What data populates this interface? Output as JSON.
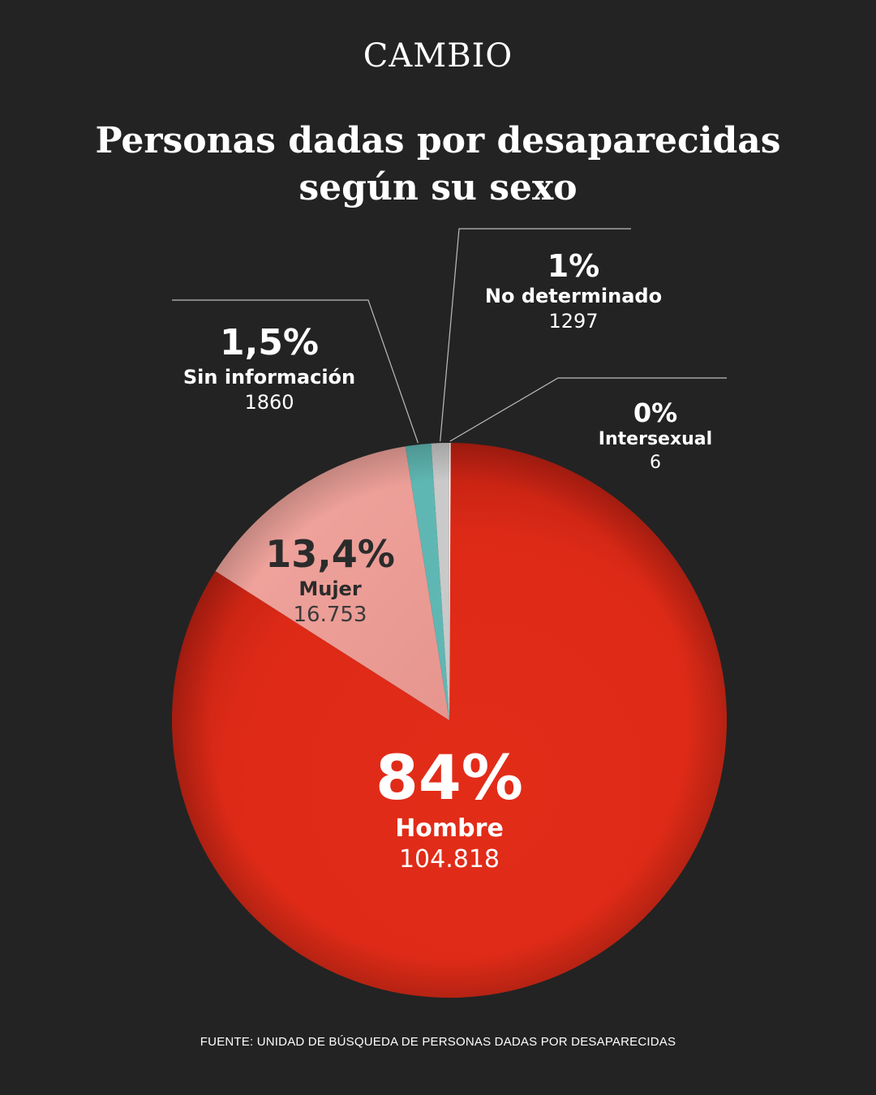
{
  "brand": "CAMBIO",
  "title_line1": "Personas dadas por desaparecidas",
  "title_line2": "según su sexo",
  "source": "FUENTE: UNIDAD DE BÚSQUEDA DE PERSONAS DADAS POR DESAPARECIDAS",
  "colors": {
    "background": "#232323",
    "hombre": "#e02a17",
    "mujer": "#efa39c",
    "sin_informacion": "#5fb7b3",
    "no_determinado": "#c9c9c9",
    "intersexual": "#ffffff",
    "leader_line": "#bdbdbd"
  },
  "chart_data": {
    "type": "pie",
    "title": "Personas dadas por desaparecidas según su sexo",
    "slices": [
      {
        "key": "hombre",
        "name": "Hombre",
        "percent_label": "84%",
        "count_label": "104.818",
        "value": 104818
      },
      {
        "key": "mujer",
        "name": "Mujer",
        "percent_label": "13,4%",
        "count_label": "16.753",
        "value": 16753
      },
      {
        "key": "sin_informacion",
        "name": "Sin información",
        "percent_label": "1,5%",
        "count_label": "1860",
        "value": 1860
      },
      {
        "key": "no_determinado",
        "name": "No determinado",
        "percent_label": "1%",
        "count_label": "1297",
        "value": 1297
      },
      {
        "key": "intersexual",
        "name": "Intersexual",
        "percent_label": "0%",
        "count_label": "6",
        "value": 6
      }
    ]
  }
}
